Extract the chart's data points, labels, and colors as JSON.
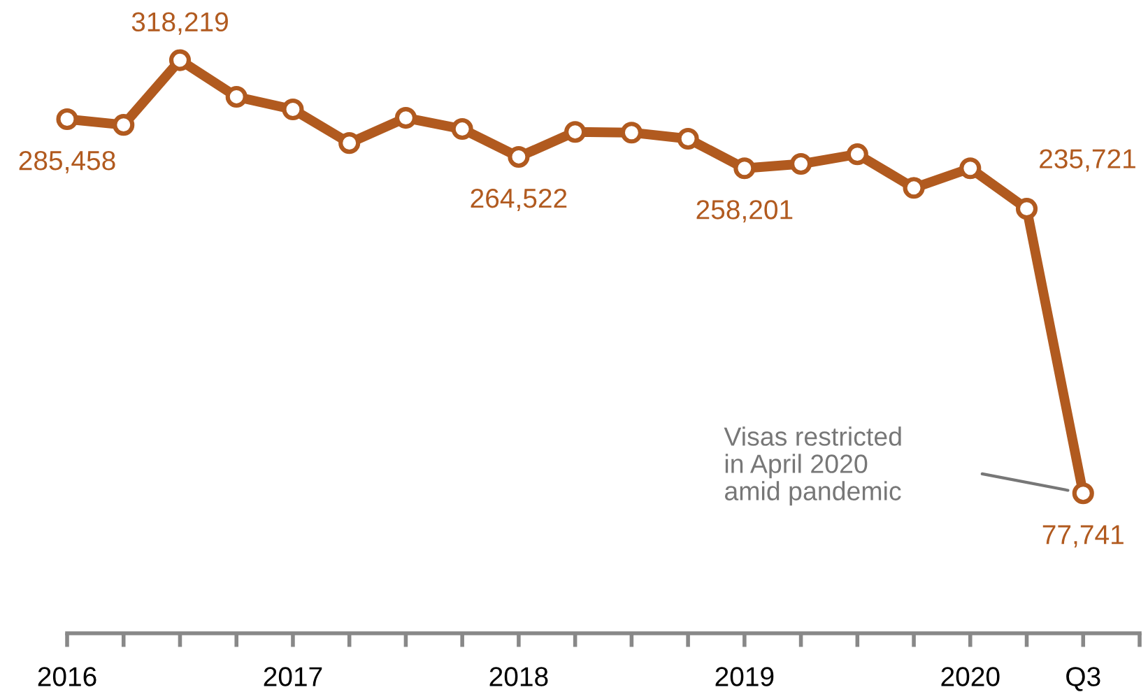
{
  "chart_data": {
    "type": "line",
    "categories": [
      "2016",
      null,
      null,
      null,
      "2017",
      null,
      null,
      null,
      "2018",
      null,
      null,
      null,
      "2019",
      null,
      null,
      null,
      "2020",
      null,
      "Q3"
    ],
    "series": [
      {
        "color": "#b15a1f",
        "values": [
          285458,
          282300,
          318219,
          297900,
          290900,
          272200,
          286200,
          280000,
          264522,
          278400,
          278000,
          274600,
          258201,
          260600,
          266000,
          247300,
          258200,
          235721,
          77741
        ],
        "value_labels": [
          "285,458",
          null,
          "318,219",
          null,
          null,
          null,
          null,
          null,
          "264,522",
          null,
          null,
          null,
          "258,201",
          null,
          null,
          null,
          null,
          "235,721",
          "77,741"
        ]
      }
    ],
    "marker": "circle",
    "line_style": "solid",
    "grid": false,
    "legend": false,
    "annotations": [
      "Visas restricted\nin April 2020\namid pandemic"
    ]
  }
}
